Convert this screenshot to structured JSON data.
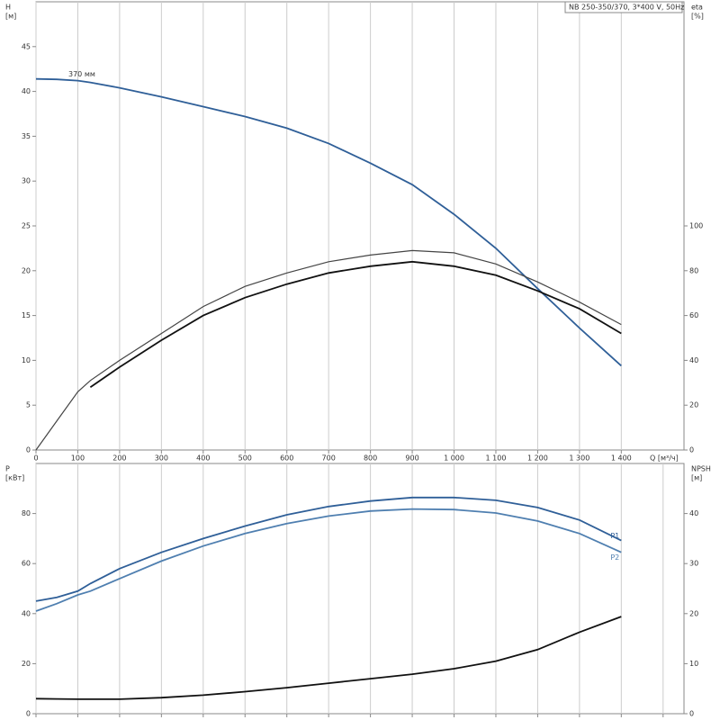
{
  "chart_data": [
    {
      "type": "line",
      "box_label": "NB 250-350/370, 3*400 V, 50Hz",
      "ylabel": [
        "H",
        "[м]"
      ],
      "y2label": [
        "eta",
        "[%]"
      ],
      "xlabel": "Q [м³/ч]",
      "x": [
        0,
        50,
        100,
        130,
        200,
        300,
        400,
        500,
        600,
        700,
        800,
        900,
        1000,
        1100,
        1200,
        1300,
        1400
      ],
      "xlim": [
        0,
        1550
      ],
      "xticks": [
        0,
        100,
        200,
        300,
        400,
        500,
        600,
        700,
        800,
        900,
        {
          "value": 1000,
          "label": "1 000"
        },
        {
          "value": 1100,
          "label": "1 100"
        },
        {
          "value": 1200,
          "label": "1 200"
        },
        {
          "value": 1300,
          "label": "1 300"
        },
        {
          "value": 1400,
          "label": "1 400"
        }
      ],
      "xtick_labels": true,
      "ylim": [
        0,
        50
      ],
      "yticks": [
        0,
        5,
        10,
        15,
        20,
        25,
        30,
        35,
        40,
        45
      ],
      "y2lim": [
        0,
        200
      ],
      "y2ticks": [
        0,
        20,
        40,
        60,
        80,
        100
      ],
      "grid": true,
      "series": [
        {
          "name": "370 мм",
          "color": "#2f5f98",
          "values": [
            41.4,
            41.35,
            41.2,
            41.0,
            40.4,
            39.4,
            38.3,
            37.2,
            35.9,
            34.2,
            32.0,
            29.6,
            26.3,
            22.5,
            18.0,
            13.6,
            9.4
          ]
        },
        {
          "color": "#444444",
          "axis": "y2",
          "values": [
            0,
            13,
            26,
            31,
            40,
            52,
            64,
            73,
            79,
            84,
            87,
            89,
            88,
            83,
            75,
            66,
            56
          ]
        },
        {
          "color": "#111111",
          "axis": "y2",
          "values": [
            null,
            null,
            null,
            28,
            37,
            49,
            60,
            68,
            74,
            79,
            82,
            84,
            82,
            78,
            71,
            63,
            52
          ]
        }
      ]
    },
    {
      "type": "line",
      "ylabel": [
        "P",
        "[кВт]"
      ],
      "y2label": [
        "NPSH",
        "[м]"
      ],
      "x": [
        0,
        50,
        100,
        130,
        200,
        300,
        400,
        500,
        600,
        700,
        800,
        900,
        1000,
        1100,
        1200,
        1300,
        1400
      ],
      "xlim": [
        0,
        1550
      ],
      "xticks": [
        0,
        100,
        200,
        300,
        400,
        500,
        600,
        700,
        800,
        900,
        1000,
        1100,
        1200,
        1300,
        1400,
        1500
      ],
      "xtick_labels": false,
      "ylim": [
        0,
        100
      ],
      "yticks": [
        0,
        20,
        40,
        60,
        80
      ],
      "y2lim": [
        0,
        50
      ],
      "y2ticks": [
        0,
        10,
        20,
        30,
        40
      ],
      "grid": true,
      "series": [
        {
          "name": "P1",
          "color": "#2f5f98",
          "values": [
            45,
            46.5,
            49,
            52,
            58,
            64.5,
            70,
            75,
            79.5,
            82.8,
            85,
            86.4,
            86.4,
            85.3,
            82.4,
            77.4,
            69.2
          ]
        },
        {
          "name": "P2",
          "color": "#4f7fb0",
          "values": [
            41,
            44,
            47.5,
            49,
            54,
            61,
            67,
            72,
            76,
            79,
            81,
            81.8,
            81.6,
            80.2,
            77,
            72,
            64.5
          ]
        },
        {
          "color": "#111111",
          "axis": "y2",
          "values": [
            3.0,
            2.95,
            2.9,
            2.9,
            2.9,
            3.2,
            3.7,
            4.4,
            5.2,
            6.1,
            7.0,
            7.9,
            9.0,
            10.5,
            12.8,
            16.3,
            19.4
          ]
        }
      ]
    }
  ]
}
